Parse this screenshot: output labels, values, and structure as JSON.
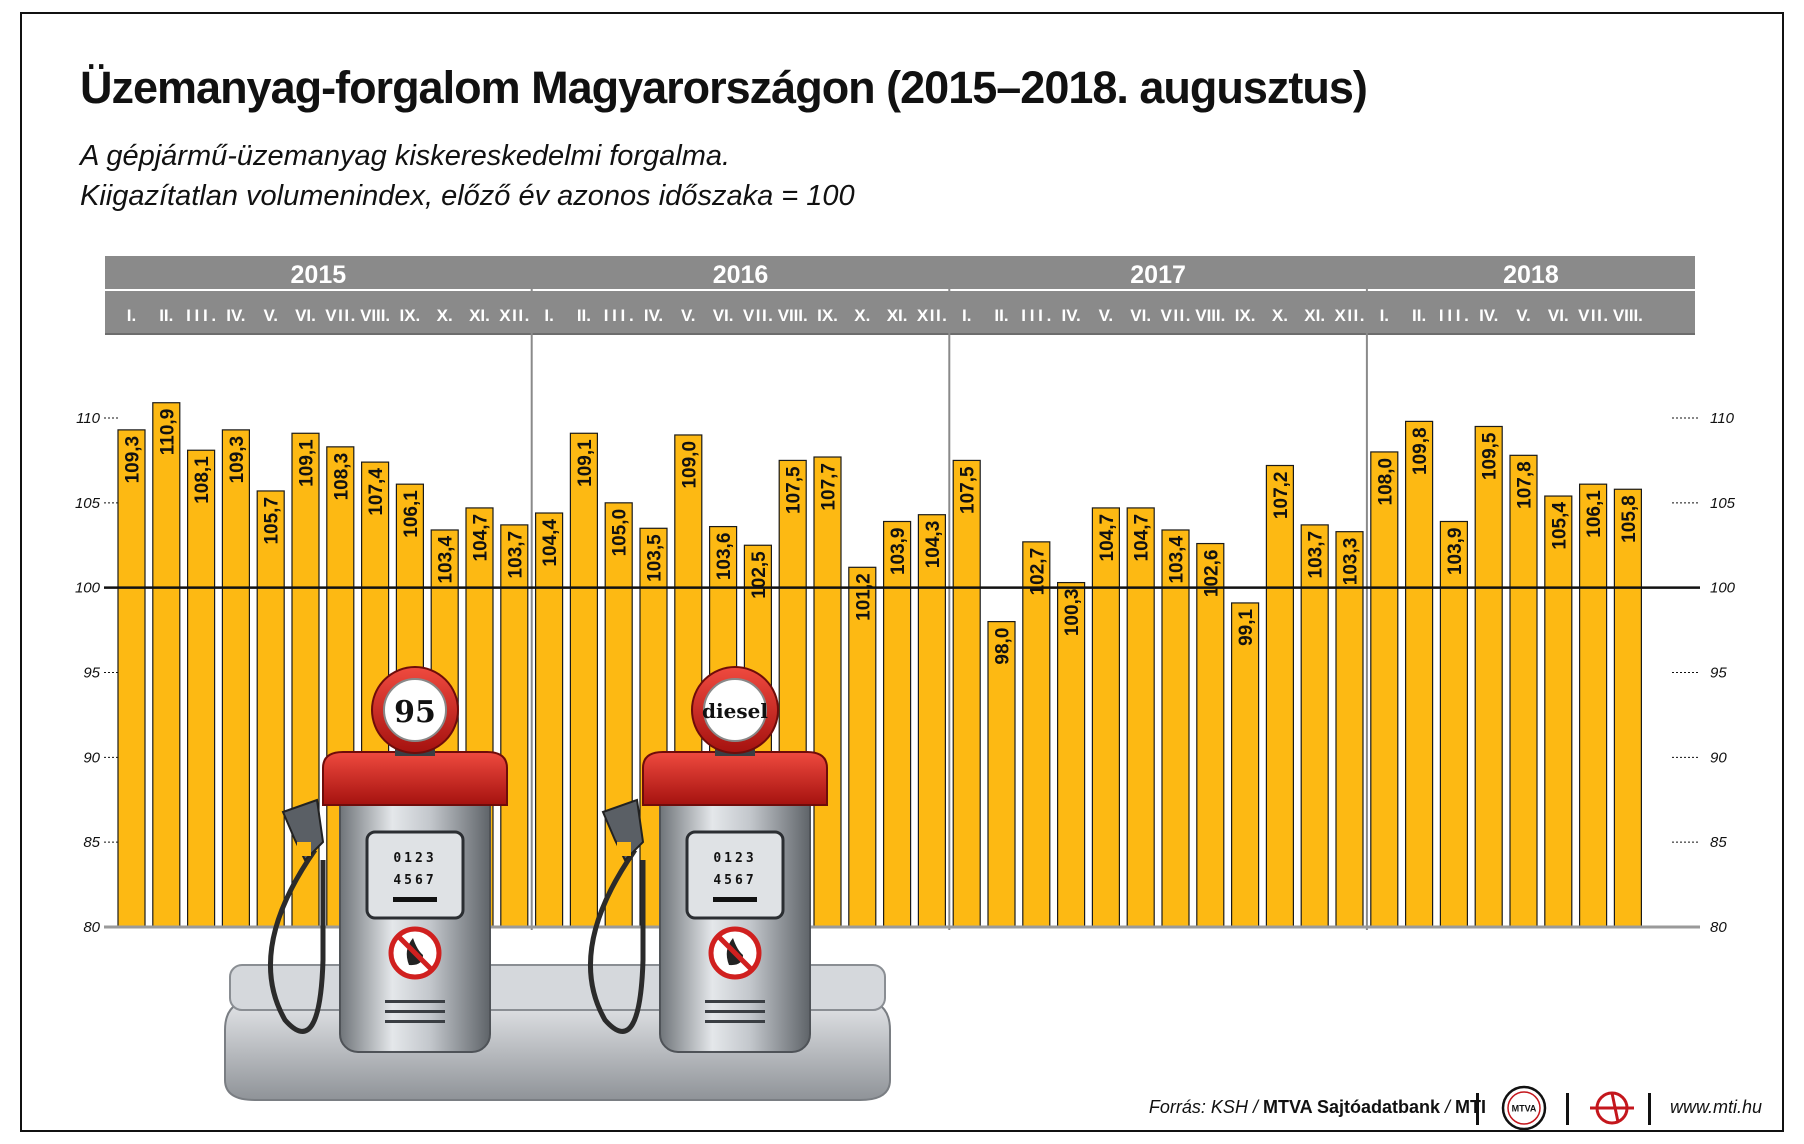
{
  "title": "Üzemanyag-forgalom Magyarországon (2015–2018. augusztus)",
  "subtitle_line1": "A gépjármű-üzemanyag kiskereskedelmi forgalma.",
  "subtitle_line2": "Kiigazítatlan volumenindex, előző év azonos időszaka = 100",
  "footer": {
    "source_prefix": "Forrás: KSH / ",
    "source_bold1": "MTVA Sajtóadatbank",
    "source_sep": " / ",
    "source_bold2": "MTI",
    "mtva_logo_text": "MTVA",
    "website": "www.mti.hu"
  },
  "colors": {
    "bar": "#FDB913",
    "bar_stroke": "#1a1a1a",
    "header_bg": "#8a8a8a",
    "header_text": "#ffffff",
    "baseline": "#111111",
    "pump_red": "#d0201f",
    "pump_silver": "#b8bcc1"
  },
  "illustration": {
    "pump1_label": "95",
    "pump2_label": "diesel",
    "counter_top": "0123",
    "counter_bottom": "4567"
  },
  "chart_data": {
    "type": "bar",
    "years": [
      {
        "label": "2015",
        "months": [
          "I.",
          "II.",
          "III.",
          "IV.",
          "V.",
          "VI.",
          "VII.",
          "VIII.",
          "IX.",
          "X.",
          "XI.",
          "XII."
        ]
      },
      {
        "label": "2016",
        "months": [
          "I.",
          "II.",
          "III.",
          "IV.",
          "V.",
          "VI.",
          "VII.",
          "VIII.",
          "IX.",
          "X.",
          "XI.",
          "XII."
        ]
      },
      {
        "label": "2017",
        "months": [
          "I.",
          "II.",
          "III.",
          "IV.",
          "V.",
          "VI.",
          "VII.",
          "VIII.",
          "IX.",
          "X.",
          "XI.",
          "XII."
        ]
      },
      {
        "label": "2018",
        "months": [
          "I.",
          "II.",
          "III.",
          "IV.",
          "V.",
          "VI.",
          "VII.",
          "VIII."
        ]
      }
    ],
    "values": [
      109.3,
      110.9,
      108.1,
      109.3,
      105.7,
      109.1,
      108.3,
      107.4,
      106.1,
      103.4,
      104.7,
      103.7,
      104.4,
      109.1,
      105.0,
      103.5,
      109.0,
      103.6,
      102.5,
      107.5,
      107.7,
      101.2,
      103.9,
      104.3,
      107.5,
      98.0,
      102.7,
      100.3,
      104.7,
      104.7,
      103.4,
      102.6,
      99.1,
      107.2,
      103.7,
      103.3,
      108.0,
      109.8,
      103.9,
      109.5,
      107.8,
      105.4,
      106.1,
      105.8
    ],
    "value_labels": [
      "109,3",
      "110,9",
      "108,1",
      "109,3",
      "105,7",
      "109,1",
      "108,3",
      "107,4",
      "106,1",
      "103,4",
      "104,7",
      "103,7",
      "104,4",
      "109,1",
      "105,0",
      "103,5",
      "109,0",
      "103,6",
      "102,5",
      "107,5",
      "107,7",
      "101,2",
      "103,9",
      "104,3",
      "107,5",
      "98,0",
      "102,7",
      "100,3",
      "104,7",
      "104,7",
      "103,4",
      "102,6",
      "99,1",
      "107,2",
      "103,7",
      "103,3",
      "108,0",
      "109,8",
      "103,9",
      "109,5",
      "107,8",
      "105,4",
      "106,1",
      "105,8"
    ],
    "yticks": [
      110,
      105,
      100,
      95,
      90,
      85,
      80
    ],
    "ylim": [
      80,
      110
    ],
    "reference": 100,
    "grid": "dotted tick stubs at each side"
  }
}
